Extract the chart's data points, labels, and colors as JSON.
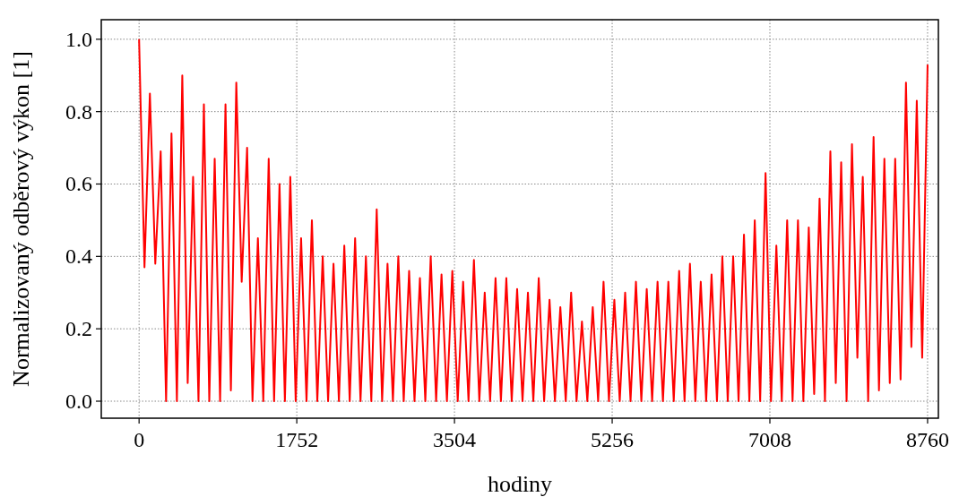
{
  "chart_data": {
    "type": "line",
    "xlabel": "hodiny",
    "ylabel": "Normalizovaný odběrový výkon [1]",
    "xlim": [
      -420,
      8880
    ],
    "ylim": [
      -0.047,
      1.054
    ],
    "xticks": [
      0,
      1752,
      3504,
      5256,
      7008,
      8760
    ],
    "yticks": [
      {
        "value": 0,
        "label": "0.0"
      },
      {
        "value": 0.2,
        "label": "0.2"
      },
      {
        "value": 0.4,
        "label": "0.4"
      },
      {
        "value": 0.6,
        "label": "0.6"
      },
      {
        "value": 0.8,
        "label": "0.8"
      },
      {
        "value": 1,
        "label": "1.0"
      }
    ],
    "grid": true,
    "line_style": "solid",
    "series": [
      {
        "color": "#ff0000",
        "x": [
          0,
          60,
          120,
          180,
          240,
          300,
          360,
          420,
          480,
          540,
          600,
          660,
          720,
          780,
          840,
          900,
          960,
          1020,
          1080,
          1140,
          1200,
          1260,
          1320,
          1380,
          1440,
          1500,
          1560,
          1620,
          1680,
          1740,
          1800,
          1860,
          1920,
          1980,
          2040,
          2100,
          2160,
          2220,
          2280,
          2340,
          2400,
          2460,
          2520,
          2580,
          2640,
          2700,
          2760,
          2820,
          2880,
          2940,
          3000,
          3060,
          3120,
          3180,
          3240,
          3300,
          3360,
          3420,
          3480,
          3540,
          3600,
          3660,
          3720,
          3780,
          3840,
          3900,
          3960,
          4020,
          4080,
          4140,
          4200,
          4260,
          4320,
          4380,
          4440,
          4500,
          4560,
          4620,
          4680,
          4740,
          4800,
          4860,
          4920,
          4980,
          5040,
          5100,
          5160,
          5220,
          5280,
          5340,
          5400,
          5460,
          5520,
          5580,
          5640,
          5700,
          5760,
          5820,
          5880,
          5940,
          6000,
          6060,
          6120,
          6180,
          6240,
          6300,
          6360,
          6420,
          6480,
          6540,
          6600,
          6660,
          6720,
          6780,
          6840,
          6900,
          6960,
          7020,
          7080,
          7140,
          7200,
          7260,
          7320,
          7380,
          7440,
          7500,
          7560,
          7620,
          7680,
          7740,
          7800,
          7860,
          7920,
          7980,
          8040,
          8100,
          8160,
          8220,
          8280,
          8340,
          8400,
          8460,
          8520,
          8580,
          8640,
          8700,
          8760
        ],
        "values": [
          1.0,
          0.37,
          0.85,
          0.38,
          0.69,
          0,
          0.74,
          0,
          0.9,
          0.05,
          0.62,
          0,
          0.82,
          0,
          0.67,
          0,
          0.82,
          0.03,
          0.88,
          0.33,
          0.7,
          0,
          0.45,
          0,
          0.67,
          0,
          0.6,
          0,
          0.62,
          0,
          0.45,
          0,
          0.5,
          0,
          0.4,
          0,
          0.38,
          0,
          0.43,
          0,
          0.45,
          0,
          0.4,
          0,
          0.53,
          0,
          0.38,
          0,
          0.4,
          0,
          0.36,
          0,
          0.34,
          0,
          0.4,
          0,
          0.35,
          0,
          0.36,
          0,
          0.33,
          0,
          0.39,
          0,
          0.3,
          0,
          0.34,
          0,
          0.34,
          0,
          0.31,
          0,
          0.3,
          0,
          0.34,
          0,
          0.28,
          0,
          0.26,
          0,
          0.3,
          0,
          0.22,
          0,
          0.26,
          0,
          0.33,
          0,
          0.28,
          0,
          0.3,
          0,
          0.33,
          0,
          0.31,
          0,
          0.33,
          0,
          0.33,
          0,
          0.36,
          0,
          0.38,
          0,
          0.33,
          0,
          0.35,
          0,
          0.4,
          0,
          0.4,
          0,
          0.46,
          0,
          0.5,
          0,
          0.63,
          0,
          0.43,
          0,
          0.5,
          0,
          0.5,
          0,
          0.48,
          0.02,
          0.56,
          0,
          0.69,
          0.05,
          0.66,
          0,
          0.71,
          0.12,
          0.62,
          0,
          0.73,
          0.03,
          0.67,
          0.05,
          0.67,
          0.06,
          0.88,
          0.15,
          0.83,
          0.12,
          0.93
        ]
      }
    ]
  }
}
